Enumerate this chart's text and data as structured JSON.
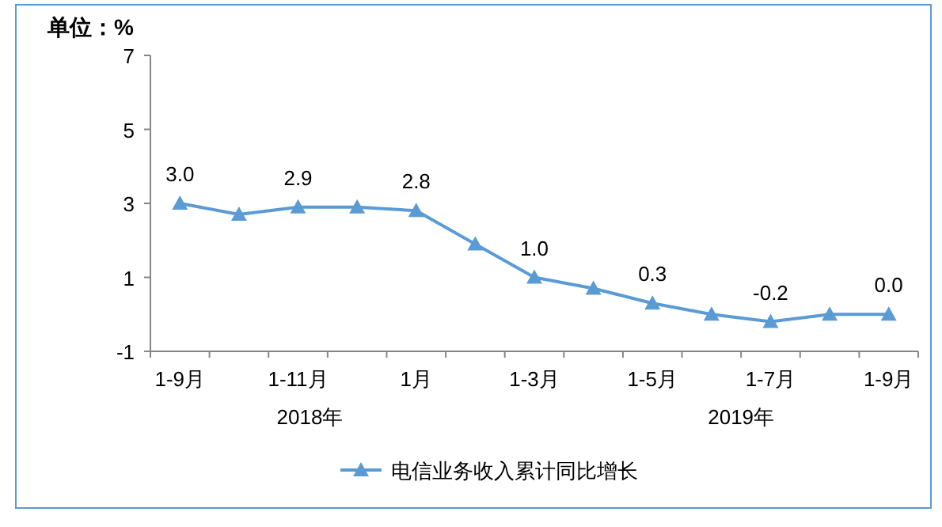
{
  "chart_data": {
    "type": "line",
    "ylabel": "单位：%",
    "categories": [
      "1-9月",
      null,
      "1-11月",
      null,
      "1月",
      null,
      "1-3月",
      null,
      "1-5月",
      null,
      "1-7月",
      null,
      "1-9月"
    ],
    "series": [
      {
        "name": "电信业务收入累计同比增长",
        "color": "#5b9bd5",
        "values": [
          3.0,
          2.7,
          2.9,
          2.9,
          2.8,
          1.9,
          1.0,
          0.7,
          0.3,
          0.0,
          -0.2,
          0.0,
          0.0
        ],
        "value_labels": [
          "3.0",
          null,
          "2.9",
          null,
          "2.8",
          null,
          "1.0",
          null,
          "0.3",
          null,
          "-0.2",
          null,
          "0.0"
        ]
      }
    ],
    "ylim": [
      -1,
      7
    ],
    "yticks": [
      -1,
      1,
      3,
      5,
      7
    ],
    "marker": "triangle",
    "legend": "bottom",
    "annotations": [
      "2018年",
      "2019年"
    ]
  }
}
